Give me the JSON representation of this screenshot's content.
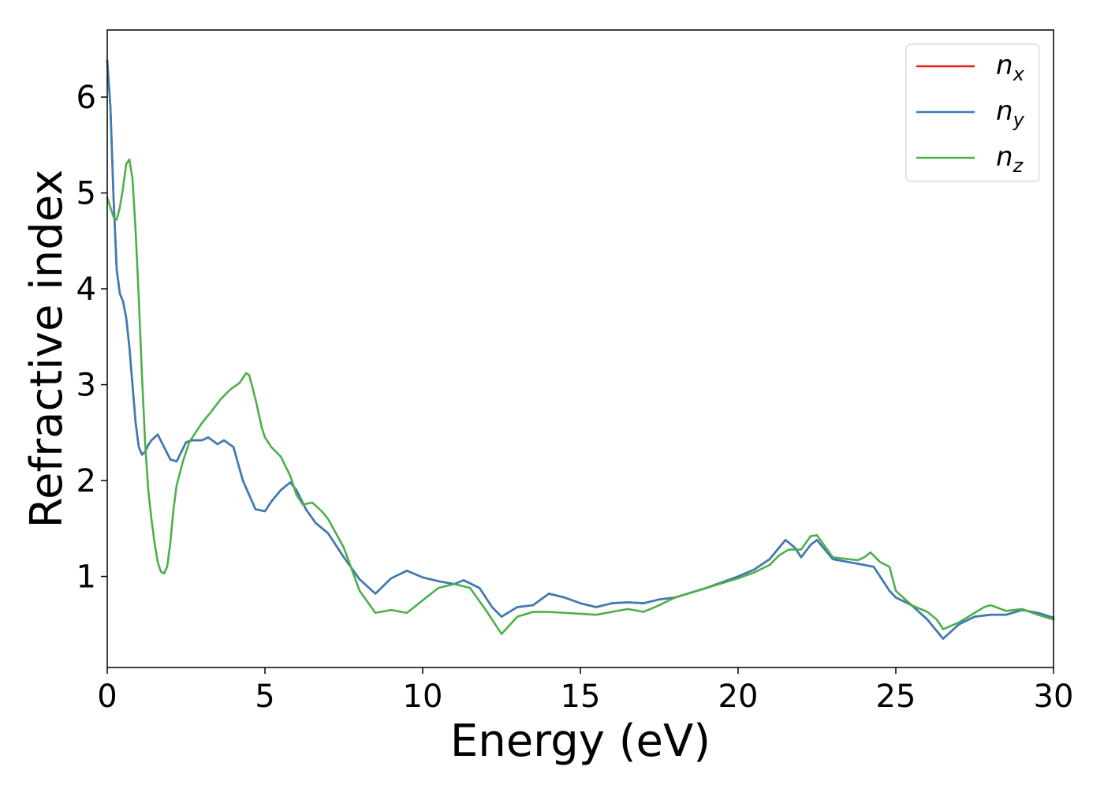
{
  "chart_data": {
    "type": "line",
    "xlabel": "Energy (eV)",
    "ylabel": "Refractive index",
    "xlim": [
      0,
      30
    ],
    "ylim": [
      0.05,
      6.7
    ],
    "xticks": [
      0,
      5,
      10,
      15,
      20,
      25,
      30
    ],
    "yticks": [
      1,
      2,
      3,
      4,
      5,
      6
    ],
    "grid": false,
    "legend_position": "top-right",
    "series": [
      {
        "name": "n",
        "subscript": "x",
        "color": "#e41a1c",
        "x": [
          0,
          0.1,
          0.2,
          0.3,
          0.4,
          0.5,
          0.6,
          0.7,
          0.8,
          0.9,
          1.0,
          1.1,
          1.2,
          1.3,
          1.4,
          1.6,
          1.8,
          2.0,
          2.2,
          2.5,
          2.7,
          3.0,
          3.2,
          3.5,
          3.7,
          4.0,
          4.3,
          4.7,
          5.0,
          5.2,
          5.5,
          5.8,
          6.0,
          6.3,
          6.6,
          7.0,
          7.5,
          8.0,
          8.5,
          9.0,
          9.5,
          10.0,
          10.5,
          11.0,
          11.3,
          11.8,
          12.2,
          12.5,
          13.0,
          13.5,
          14.0,
          14.5,
          15.0,
          15.5,
          16.0,
          16.5,
          17.0,
          17.5,
          18.0,
          19.0,
          20.0,
          20.5,
          21.0,
          21.3,
          21.5,
          21.8,
          22.0,
          22.3,
          22.5,
          23.0,
          23.5,
          24.0,
          24.3,
          24.8,
          25.0,
          25.5,
          26.0,
          26.5,
          27.0,
          27.5,
          28.0,
          28.5,
          29.0,
          29.5,
          30.0
        ],
        "values": [
          6.38,
          5.9,
          4.95,
          4.2,
          3.95,
          3.87,
          3.7,
          3.4,
          3.0,
          2.6,
          2.35,
          2.27,
          2.3,
          2.37,
          2.42,
          2.48,
          2.35,
          2.22,
          2.2,
          2.4,
          2.42,
          2.42,
          2.45,
          2.38,
          2.42,
          2.35,
          2.0,
          1.7,
          1.68,
          1.78,
          1.9,
          1.98,
          1.9,
          1.7,
          1.56,
          1.45,
          1.2,
          0.97,
          0.82,
          0.98,
          1.06,
          0.99,
          0.95,
          0.92,
          0.96,
          0.88,
          0.68,
          0.58,
          0.68,
          0.7,
          0.82,
          0.78,
          0.72,
          0.68,
          0.72,
          0.73,
          0.72,
          0.76,
          0.78,
          0.88,
          1.0,
          1.07,
          1.18,
          1.3,
          1.38,
          1.3,
          1.2,
          1.33,
          1.38,
          1.18,
          1.15,
          1.12,
          1.1,
          0.85,
          0.78,
          0.7,
          0.55,
          0.35,
          0.5,
          0.58,
          0.6,
          0.6,
          0.65,
          0.62,
          0.57
        ]
      },
      {
        "name": "n",
        "subscript": "y",
        "color": "#377eb8",
        "x": [
          0,
          0.1,
          0.2,
          0.3,
          0.4,
          0.5,
          0.6,
          0.7,
          0.8,
          0.9,
          1.0,
          1.1,
          1.2,
          1.3,
          1.4,
          1.6,
          1.8,
          2.0,
          2.2,
          2.5,
          2.7,
          3.0,
          3.2,
          3.5,
          3.7,
          4.0,
          4.3,
          4.7,
          5.0,
          5.2,
          5.5,
          5.8,
          6.0,
          6.3,
          6.6,
          7.0,
          7.5,
          8.0,
          8.5,
          9.0,
          9.5,
          10.0,
          10.5,
          11.0,
          11.3,
          11.8,
          12.2,
          12.5,
          13.0,
          13.5,
          14.0,
          14.5,
          15.0,
          15.5,
          16.0,
          16.5,
          17.0,
          17.5,
          18.0,
          19.0,
          20.0,
          20.5,
          21.0,
          21.3,
          21.5,
          21.8,
          22.0,
          22.3,
          22.5,
          23.0,
          23.5,
          24.0,
          24.3,
          24.8,
          25.0,
          25.5,
          26.0,
          26.5,
          27.0,
          27.5,
          28.0,
          28.5,
          29.0,
          29.5,
          30.0
        ],
        "values": [
          6.38,
          5.9,
          4.95,
          4.2,
          3.95,
          3.87,
          3.7,
          3.4,
          3.0,
          2.6,
          2.35,
          2.27,
          2.3,
          2.37,
          2.42,
          2.48,
          2.35,
          2.22,
          2.2,
          2.4,
          2.42,
          2.42,
          2.45,
          2.38,
          2.42,
          2.35,
          2.0,
          1.7,
          1.68,
          1.78,
          1.9,
          1.98,
          1.9,
          1.7,
          1.56,
          1.45,
          1.2,
          0.97,
          0.82,
          0.98,
          1.06,
          0.99,
          0.95,
          0.92,
          0.96,
          0.88,
          0.68,
          0.58,
          0.68,
          0.7,
          0.82,
          0.78,
          0.72,
          0.68,
          0.72,
          0.73,
          0.72,
          0.76,
          0.78,
          0.88,
          1.0,
          1.07,
          1.18,
          1.3,
          1.38,
          1.3,
          1.2,
          1.33,
          1.38,
          1.18,
          1.15,
          1.12,
          1.1,
          0.85,
          0.78,
          0.7,
          0.55,
          0.35,
          0.5,
          0.58,
          0.6,
          0.6,
          0.65,
          0.62,
          0.57
        ]
      },
      {
        "name": "n",
        "subscript": "z",
        "color": "#4daf4a",
        "x": [
          0,
          0.1,
          0.2,
          0.3,
          0.4,
          0.5,
          0.6,
          0.7,
          0.8,
          0.9,
          1.0,
          1.1,
          1.2,
          1.3,
          1.4,
          1.5,
          1.6,
          1.7,
          1.8,
          1.9,
          2.0,
          2.1,
          2.2,
          2.4,
          2.6,
          2.8,
          3.0,
          3.3,
          3.6,
          3.9,
          4.2,
          4.4,
          4.5,
          4.7,
          4.9,
          5.0,
          5.2,
          5.5,
          5.8,
          6.0,
          6.2,
          6.5,
          6.8,
          7.0,
          7.5,
          8.0,
          8.5,
          9.0,
          9.5,
          10.0,
          10.5,
          11.0,
          11.5,
          12.0,
          12.5,
          13.0,
          13.5,
          14.0,
          14.5,
          15.0,
          15.5,
          16.0,
          16.5,
          17.0,
          17.5,
          18.0,
          19.0,
          20.0,
          20.5,
          21.0,
          21.3,
          21.6,
          22.0,
          22.3,
          22.5,
          23.0,
          23.5,
          23.8,
          24.0,
          24.2,
          24.5,
          24.8,
          25.0,
          25.5,
          26.0,
          26.3,
          26.5,
          27.0,
          27.5,
          27.8,
          28.0,
          28.5,
          29.0,
          29.5,
          30.0
        ],
        "values": [
          4.95,
          4.85,
          4.75,
          4.72,
          4.85,
          5.05,
          5.3,
          5.35,
          5.15,
          4.6,
          3.9,
          3.1,
          2.4,
          1.9,
          1.6,
          1.35,
          1.15,
          1.05,
          1.03,
          1.1,
          1.35,
          1.7,
          1.95,
          2.2,
          2.4,
          2.5,
          2.6,
          2.72,
          2.85,
          2.95,
          3.02,
          3.12,
          3.1,
          2.85,
          2.55,
          2.45,
          2.35,
          2.25,
          2.05,
          1.85,
          1.75,
          1.77,
          1.68,
          1.6,
          1.3,
          0.85,
          0.62,
          0.65,
          0.62,
          0.75,
          0.88,
          0.92,
          0.88,
          0.65,
          0.4,
          0.58,
          0.63,
          0.63,
          0.62,
          0.61,
          0.6,
          0.63,
          0.66,
          0.63,
          0.7,
          0.78,
          0.88,
          0.98,
          1.04,
          1.12,
          1.22,
          1.28,
          1.28,
          1.42,
          1.43,
          1.2,
          1.18,
          1.17,
          1.2,
          1.25,
          1.15,
          1.1,
          0.85,
          0.7,
          0.63,
          0.55,
          0.45,
          0.52,
          0.62,
          0.68,
          0.7,
          0.64,
          0.66,
          0.6,
          0.55
        ]
      }
    ]
  }
}
